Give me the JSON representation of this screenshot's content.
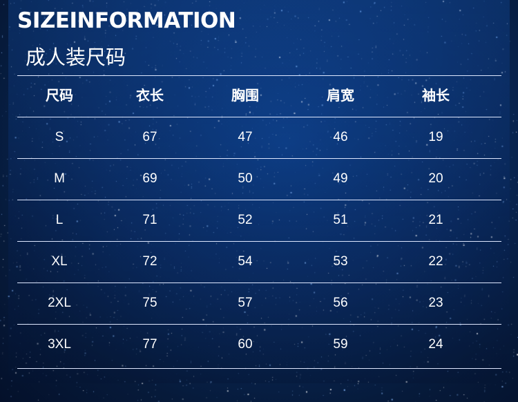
{
  "title": "SIZEINFORMATION",
  "subtitle": "成人装尺码",
  "table": {
    "headers": [
      "尺码",
      "衣长",
      "胸围",
      "肩宽",
      "袖长"
    ],
    "rows": [
      [
        "S",
        "67",
        "47",
        "46",
        "19"
      ],
      [
        "M",
        "69",
        "50",
        "49",
        "20"
      ],
      [
        "L",
        "71",
        "52",
        "51",
        "21"
      ],
      [
        "XL",
        "72",
        "54",
        "53",
        "22"
      ],
      [
        "2XL",
        "75",
        "57",
        "56",
        "23"
      ],
      [
        "3XL",
        "77",
        "60",
        "59",
        "24"
      ]
    ]
  }
}
